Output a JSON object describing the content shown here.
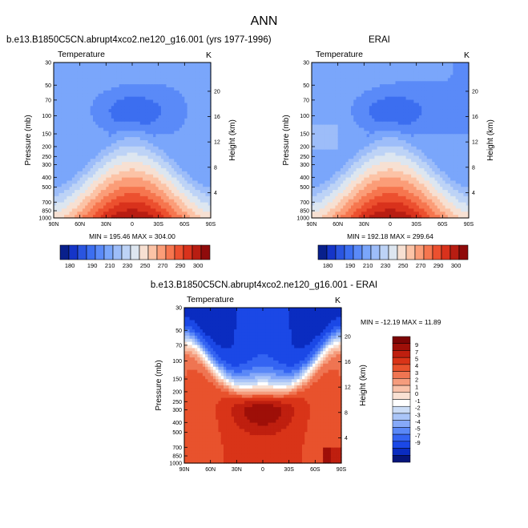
{
  "page": {
    "title": "ANN"
  },
  "colors": {
    "temperature_scale": [
      "#08208c",
      "#1535c8",
      "#2a55e0",
      "#3c6ef0",
      "#5a8af8",
      "#7aa6fb",
      "#9dbdf9",
      "#bdd3f6",
      "#dde6f0",
      "#f7e0d2",
      "#fcc3a6",
      "#fb9d78",
      "#f6764f",
      "#ec502f",
      "#d9321c",
      "#b81d12",
      "#8f0b0b"
    ],
    "anomaly_scale": [
      "#06157a",
      "#0a2cc0",
      "#1b48e6",
      "#3464f2",
      "#5a88f7",
      "#86a9f8",
      "#aac5f8",
      "#cbdcf6",
      "#ffffff",
      "#fae1d3",
      "#f9c2aa",
      "#f59c7d",
      "#ef7552",
      "#e8522d",
      "#d93418",
      "#bf1f0f",
      "#9e0f08",
      "#7c0505"
    ]
  },
  "chart_data": [
    {
      "type": "heatmap",
      "panel": "model",
      "title": "b.e13.B1850C5CN.abrupt4xco2.ne120_g16.001 (yrs 1977-1996)",
      "field_label": "Temperature",
      "units": "K",
      "xlabel": "",
      "ylabel": "Pressure (mb)",
      "right_label": "Height (km)",
      "x_ticks": [
        "90N",
        "60N",
        "30N",
        "0",
        "30S",
        "60S",
        "90S"
      ],
      "y_ticks": [
        "30",
        "50",
        "70",
        "100",
        "150",
        "200",
        "250",
        "300",
        "400",
        "500",
        "700",
        "850",
        "1000"
      ],
      "height_ticks": [
        "4",
        "8",
        "12",
        "16",
        "20"
      ],
      "ylim": [
        30,
        1000
      ],
      "stats_text": "MIN = 195.46   MAX = 304.00",
      "min": 195.46,
      "max": 304.0,
      "colorbar_labels": [
        "180",
        "190",
        "210",
        "230",
        "250",
        "270",
        "290",
        "300"
      ],
      "colorbar_range": [
        170,
        310
      ]
    },
    {
      "type": "heatmap",
      "panel": "obs",
      "title": "ERAI",
      "field_label": "Temperature",
      "units": "K",
      "xlabel": "",
      "ylabel": "Pressure (mb)",
      "right_label": "Height (km)",
      "x_ticks": [
        "90N",
        "60N",
        "30N",
        "0",
        "30S",
        "60S",
        "90S"
      ],
      "y_ticks": [
        "30",
        "50",
        "70",
        "100",
        "150",
        "200",
        "250",
        "300",
        "400",
        "500",
        "700",
        "850",
        "1000"
      ],
      "height_ticks": [
        "4",
        "8",
        "12",
        "16",
        "20"
      ],
      "ylim": [
        30,
        1000
      ],
      "stats_text": "MIN = 192.18   MAX = 299.64",
      "min": 192.18,
      "max": 299.64,
      "colorbar_labels": [
        "180",
        "190",
        "210",
        "230",
        "250",
        "270",
        "290",
        "300"
      ],
      "colorbar_range": [
        170,
        310
      ]
    },
    {
      "type": "heatmap",
      "panel": "diff",
      "title": "b.e13.B1850C5CN.abrupt4xco2.ne120_g16.001 - ERAI",
      "field_label": "Temperature",
      "units": "K",
      "xlabel": "",
      "ylabel": "Pressure (mb)",
      "right_label": "Height (km)",
      "x_ticks": [
        "90N",
        "60N",
        "30N",
        "0",
        "30S",
        "60S",
        "90S"
      ],
      "y_ticks": [
        "30",
        "50",
        "70",
        "100",
        "150",
        "200",
        "250",
        "300",
        "400",
        "500",
        "700",
        "850",
        "1000"
      ],
      "height_ticks": [
        "4",
        "8",
        "12",
        "16",
        "20"
      ],
      "ylim": [
        30,
        1000
      ],
      "stats_text": "MIN = -12.19   MAX =  11.89",
      "min": -12.19,
      "max": 11.89,
      "colorbar_labels": [
        "9",
        "7",
        "5",
        "4",
        "3",
        "2",
        "1",
        "0",
        "-1",
        "-2",
        "-3",
        "-4",
        "-5",
        "-7",
        "-9"
      ]
    }
  ]
}
